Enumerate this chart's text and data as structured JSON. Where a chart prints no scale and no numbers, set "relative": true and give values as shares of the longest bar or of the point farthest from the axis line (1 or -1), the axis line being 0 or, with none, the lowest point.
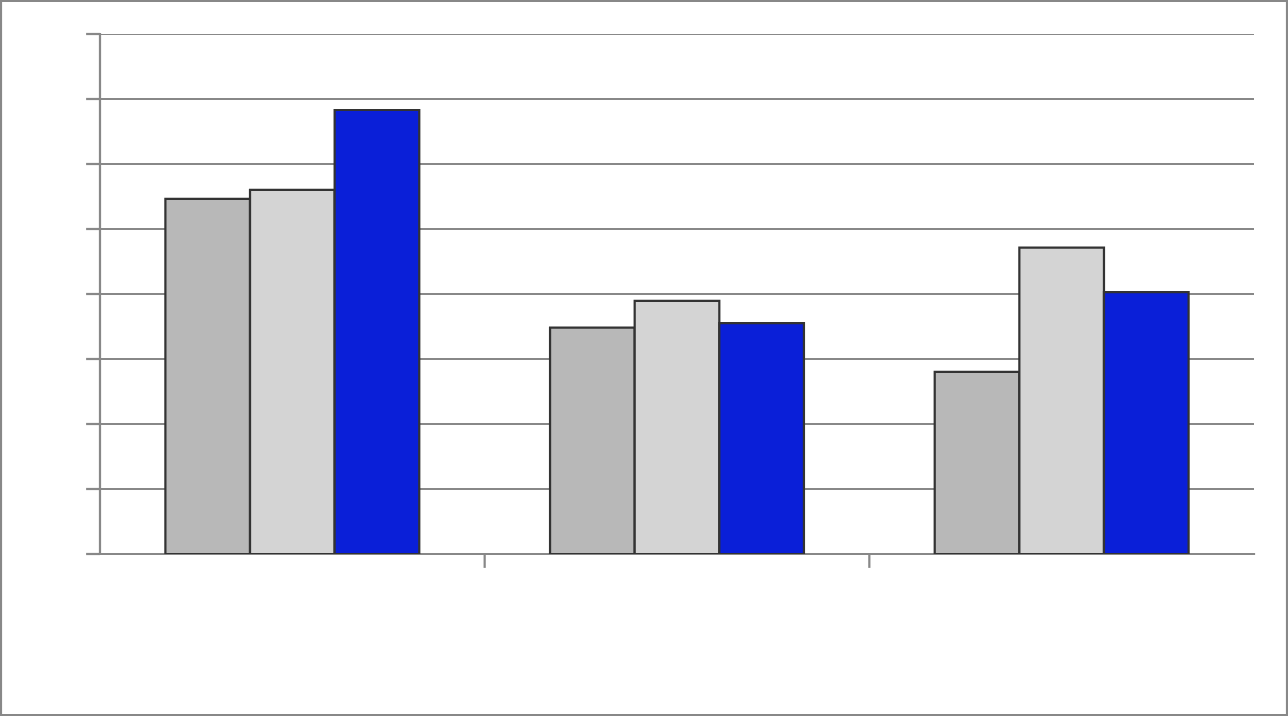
{
  "chart_data": {
    "type": "bar",
    "relative": true,
    "categories": [
      null,
      null,
      null
    ],
    "series": [
      {
        "color": "#b8b8b8",
        "values": [
          0.8,
          0.51,
          0.41
        ]
      },
      {
        "color": "#d4d4d4",
        "values": [
          0.82,
          0.57,
          0.69
        ]
      },
      {
        "color": "#0a1fd8",
        "values": [
          1.0,
          0.52,
          0.59
        ]
      }
    ],
    "grid": "y"
  }
}
